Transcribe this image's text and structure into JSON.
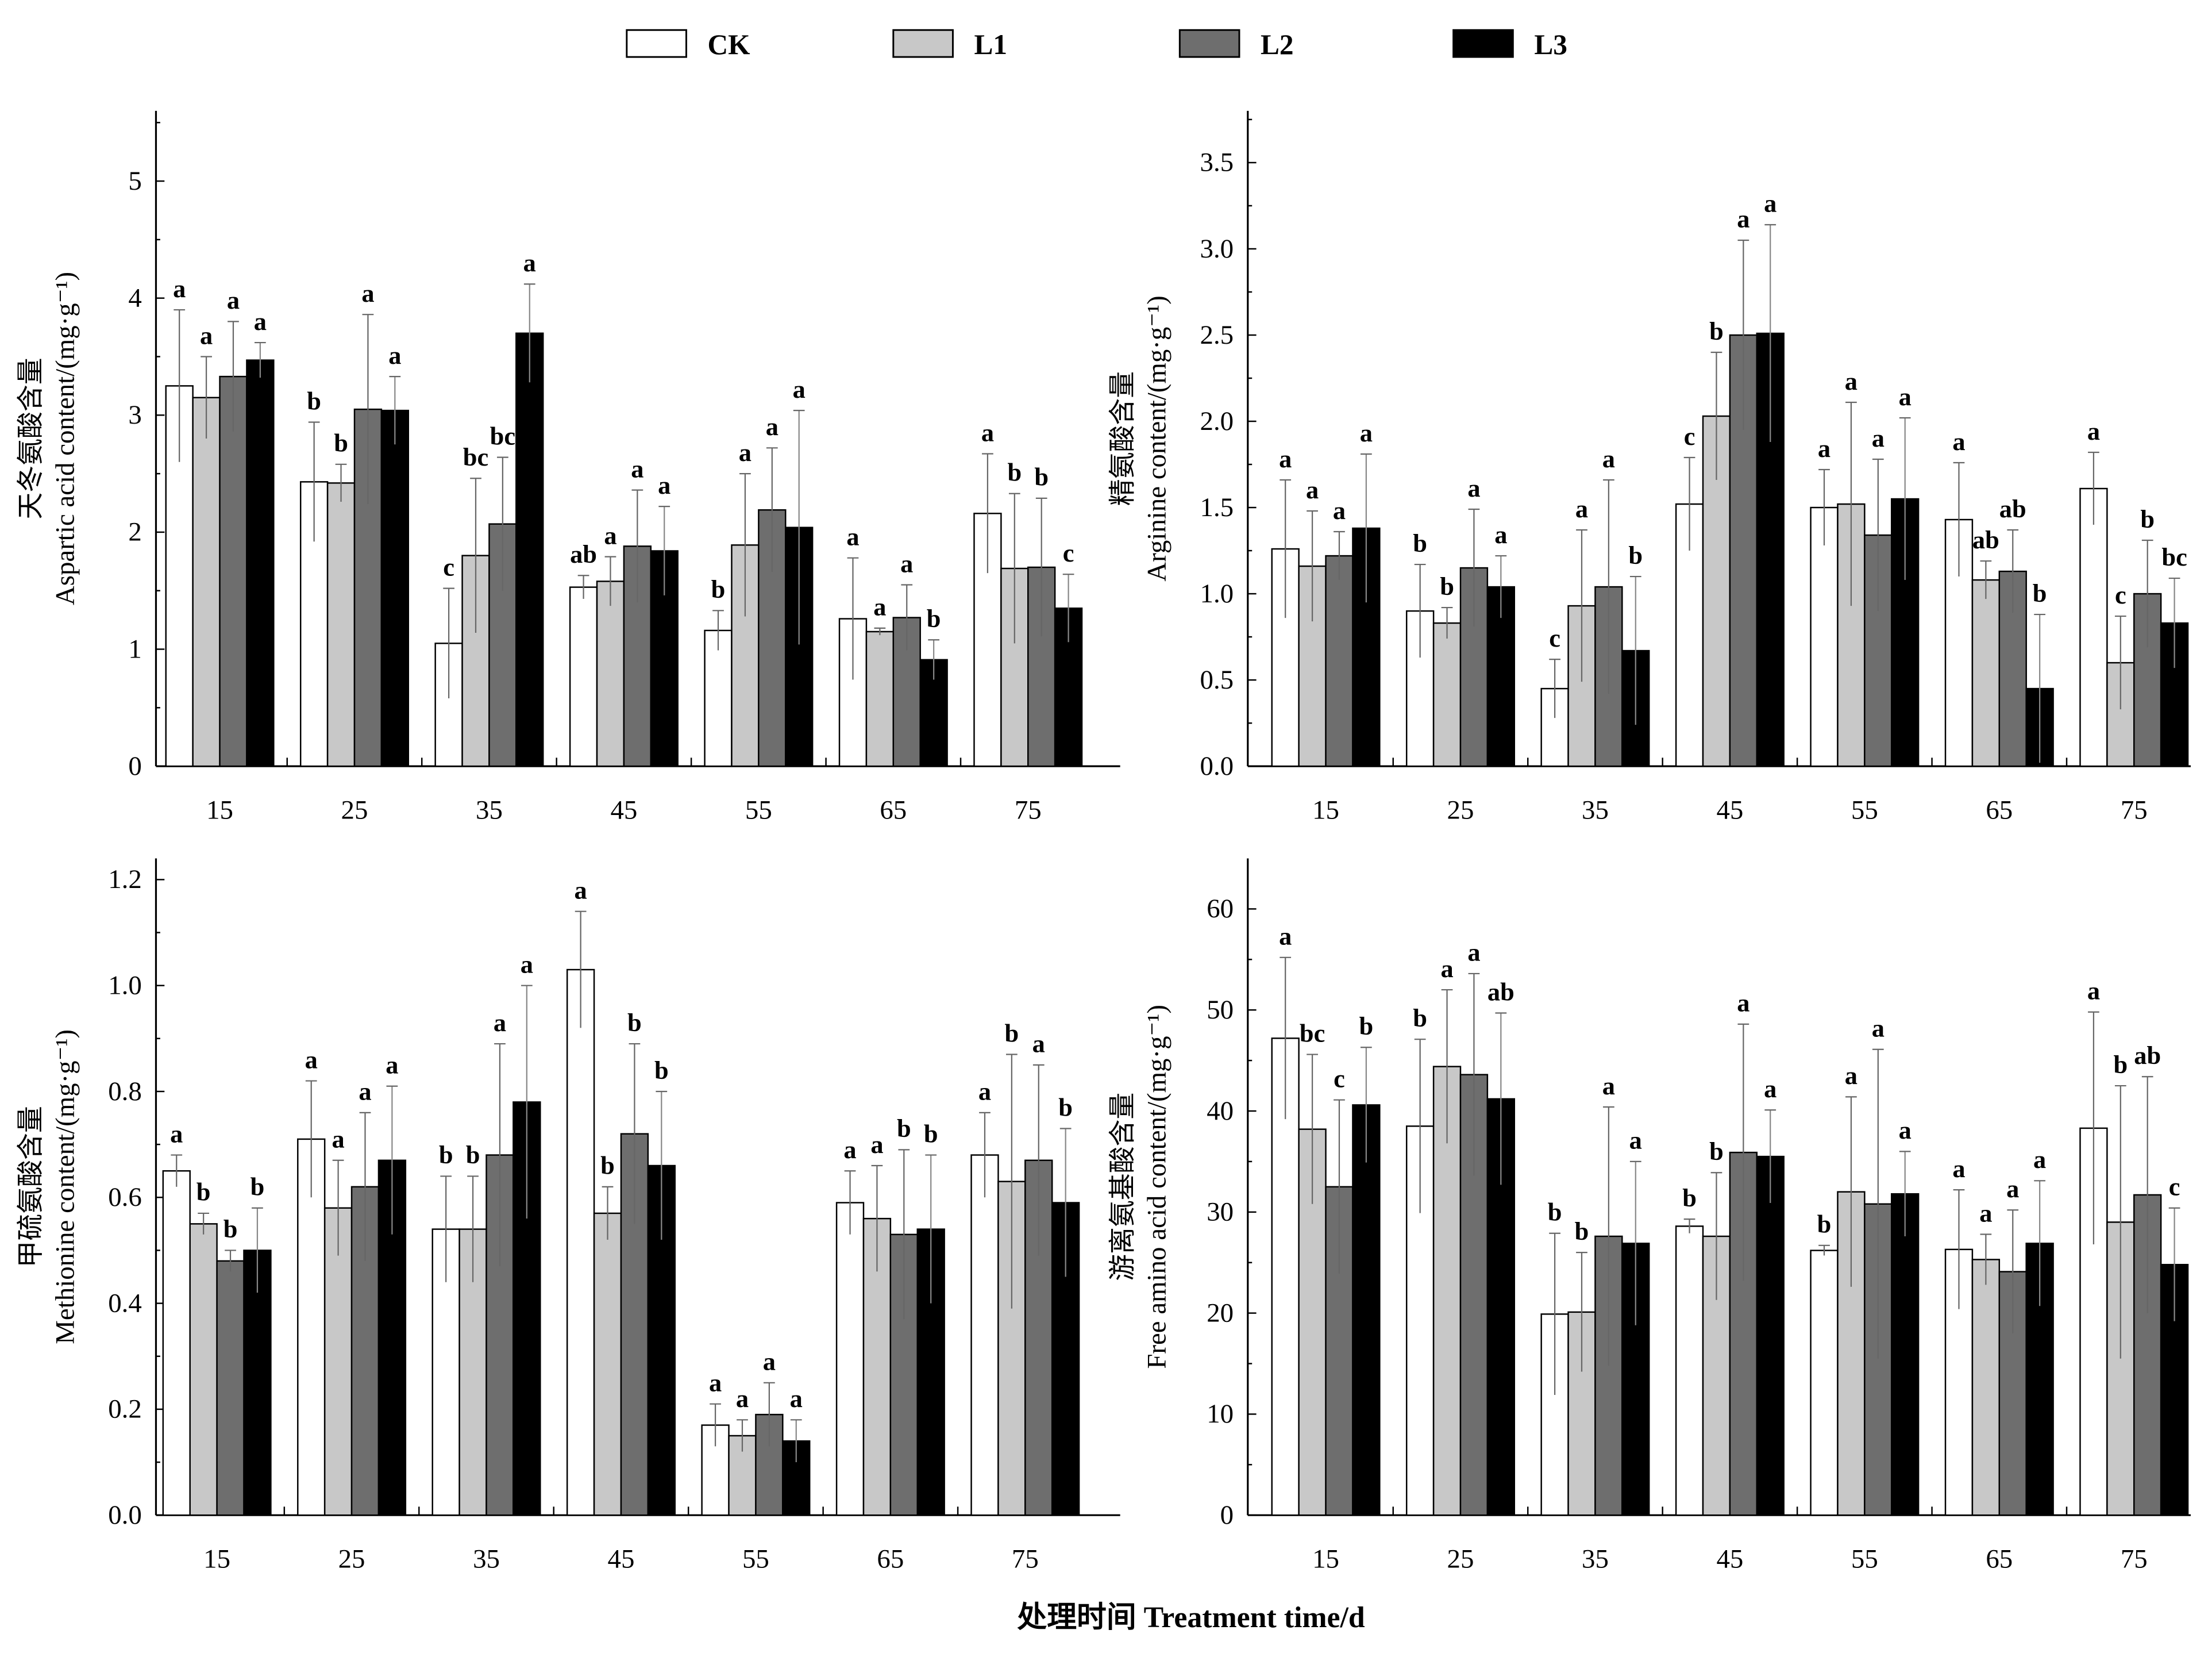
{
  "legend": {
    "items": [
      "CK",
      "L1",
      "L2",
      "L3"
    ],
    "colors": [
      "#ffffff",
      "#c8c8c8",
      "#6e6e6e",
      "#000000"
    ],
    "placement": "top-center"
  },
  "xlabel": "处理时间 Treatment time/d",
  "chart_data": [
    {
      "type": "bar",
      "ylabel_cn": "天冬氨酸含量",
      "ylabel_en": "Aspartic acid content/(mg·g⁻¹)",
      "ylim": [
        0,
        5.6
      ],
      "yticks": [
        "0",
        "1",
        "2",
        "3",
        "4",
        "5"
      ],
      "ytick_values": [
        0,
        1,
        2,
        3,
        4,
        5
      ],
      "categories": [
        "15",
        "25",
        "35",
        "45",
        "55",
        "65",
        "75"
      ],
      "series": [
        {
          "name": "CK",
          "values": [
            3.25,
            2.43,
            1.05,
            1.53,
            1.16,
            1.26,
            2.16
          ],
          "error": [
            0.65,
            0.51,
            0.47,
            0.1,
            0.17,
            0.52,
            0.51
          ],
          "letters": [
            "a",
            "b",
            "c",
            "ab",
            "b",
            "a",
            "a"
          ]
        },
        {
          "name": "L1",
          "values": [
            3.15,
            2.42,
            1.8,
            1.58,
            1.89,
            1.15,
            1.69
          ],
          "error": [
            0.35,
            0.16,
            0.66,
            0.21,
            0.61,
            0.03,
            0.64
          ],
          "letters": [
            "a",
            "b",
            "bc",
            "a",
            "a",
            "a",
            "b"
          ]
        },
        {
          "name": "L2",
          "values": [
            3.33,
            3.05,
            2.07,
            1.88,
            2.19,
            1.27,
            1.7
          ],
          "error": [
            0.47,
            0.81,
            0.57,
            0.48,
            0.53,
            0.28,
            0.59
          ],
          "letters": [
            "a",
            "a",
            "bc",
            "a",
            "a",
            "a",
            "b"
          ]
        },
        {
          "name": "L3",
          "values": [
            3.47,
            3.04,
            3.7,
            1.84,
            2.04,
            0.91,
            1.35
          ],
          "error": [
            0.15,
            0.29,
            0.42,
            0.38,
            1.0,
            0.17,
            0.29
          ],
          "letters": [
            "a",
            "a",
            "a",
            "a",
            "a",
            "b",
            "c"
          ]
        }
      ]
    },
    {
      "type": "bar",
      "ylabel_cn": "精氨酸含量",
      "ylabel_en": "Arginine content/(mg·g⁻¹)",
      "ylim": [
        0,
        3.8
      ],
      "yticks": [
        "0.0",
        "0.5",
        "1.0",
        "1.5",
        "2.0",
        "2.5",
        "3.0",
        "3.5"
      ],
      "ytick_values": [
        0,
        0.5,
        1,
        1.5,
        2,
        2.5,
        3,
        3.5
      ],
      "categories": [
        "15",
        "25",
        "35",
        "45",
        "55",
        "65",
        "75"
      ],
      "series": [
        {
          "name": "CK",
          "values": [
            1.26,
            0.9,
            0.45,
            1.52,
            1.5,
            1.43,
            1.61
          ],
          "error": [
            0.4,
            0.27,
            0.17,
            0.27,
            0.22,
            0.33,
            0.21
          ],
          "letters": [
            "a",
            "b",
            "c",
            "c",
            "a",
            "a",
            "a"
          ]
        },
        {
          "name": "L1",
          "values": [
            1.16,
            0.83,
            0.93,
            2.03,
            1.52,
            1.08,
            0.6
          ],
          "error": [
            0.32,
            0.09,
            0.44,
            0.37,
            0.59,
            0.11,
            0.27
          ],
          "letters": [
            "a",
            "b",
            "a",
            "b",
            "a",
            "ab",
            "c"
          ]
        },
        {
          "name": "L2",
          "values": [
            1.22,
            1.15,
            1.04,
            2.5,
            1.34,
            1.13,
            1.0
          ],
          "error": [
            0.14,
            0.34,
            0.62,
            0.55,
            0.44,
            0.24,
            0.31
          ],
          "letters": [
            "a",
            "a",
            "a",
            "a",
            "a",
            "ab",
            "b"
          ]
        },
        {
          "name": "L3",
          "values": [
            1.38,
            1.04,
            0.67,
            2.51,
            1.55,
            0.45,
            0.83
          ],
          "error": [
            0.43,
            0.18,
            0.43,
            0.63,
            0.47,
            0.43,
            0.26
          ],
          "letters": [
            "a",
            "a",
            "b",
            "a",
            "a",
            "b",
            "bc"
          ]
        }
      ]
    },
    {
      "type": "bar",
      "ylabel_cn": "甲硫氨酸含量",
      "ylabel_en": "Methionine content/(mg·g⁻¹)",
      "ylim": [
        0,
        1.24
      ],
      "yticks": [
        "0.0",
        "0.2",
        "0.4",
        "0.6",
        "0.8",
        "1.0",
        "1.2"
      ],
      "ytick_values": [
        0,
        0.2,
        0.4,
        0.6,
        0.8,
        1.0,
        1.2
      ],
      "categories": [
        "15",
        "25",
        "35",
        "45",
        "55",
        "65",
        "75"
      ],
      "series": [
        {
          "name": "CK",
          "values": [
            0.65,
            0.71,
            0.54,
            1.03,
            0.17,
            0.59,
            0.68
          ],
          "error": [
            0.03,
            0.11,
            0.1,
            0.11,
            0.04,
            0.06,
            0.08
          ],
          "letters": [
            "a",
            "a",
            "b",
            "a",
            "a",
            "a",
            "a"
          ]
        },
        {
          "name": "L1",
          "values": [
            0.55,
            0.58,
            0.54,
            0.57,
            0.15,
            0.56,
            0.63
          ],
          "error": [
            0.02,
            0.09,
            0.1,
            0.05,
            0.03,
            0.1,
            0.24
          ],
          "letters": [
            "b",
            "a",
            "b",
            "b",
            "a",
            "a",
            "b"
          ]
        },
        {
          "name": "L2",
          "values": [
            0.48,
            0.62,
            0.68,
            0.72,
            0.19,
            0.53,
            0.67
          ],
          "error": [
            0.02,
            0.14,
            0.21,
            0.17,
            0.06,
            0.16,
            0.18
          ],
          "letters": [
            "b",
            "a",
            "a",
            "b",
            "a",
            "b",
            "a"
          ]
        },
        {
          "name": "L3",
          "values": [
            0.5,
            0.67,
            0.78,
            0.66,
            0.14,
            0.54,
            0.59
          ],
          "error": [
            0.08,
            0.14,
            0.22,
            0.14,
            0.04,
            0.14,
            0.14
          ],
          "letters": [
            "b",
            "a",
            "a",
            "b",
            "a",
            "b",
            "b"
          ]
        }
      ]
    },
    {
      "type": "bar",
      "ylabel_cn": "游离氨基酸含量",
      "ylabel_en": "Free amino acid content/(mg·g⁻¹)",
      "ylim": [
        0,
        65
      ],
      "yticks": [
        "0",
        "10",
        "20",
        "30",
        "40",
        "50",
        "60"
      ],
      "ytick_values": [
        0,
        10,
        20,
        30,
        40,
        50,
        60
      ],
      "categories": [
        "15",
        "25",
        "35",
        "45",
        "55",
        "65",
        "75"
      ],
      "series": [
        {
          "name": "CK",
          "values": [
            47.2,
            38.5,
            19.9,
            28.6,
            26.2,
            26.3,
            38.3
          ],
          "error": [
            8.0,
            8.6,
            8.0,
            0.7,
            0.5,
            5.9,
            11.5
          ],
          "letters": [
            "a",
            "b",
            "b",
            "b",
            "b",
            "a",
            "a"
          ]
        },
        {
          "name": "L1",
          "values": [
            38.2,
            44.4,
            20.1,
            27.6,
            32.0,
            25.3,
            29.0
          ],
          "error": [
            7.4,
            7.6,
            5.9,
            6.3,
            9.4,
            2.5,
            13.5
          ],
          "letters": [
            "bc",
            "a",
            "b",
            "b",
            "a",
            "a",
            "b"
          ]
        },
        {
          "name": "L2",
          "values": [
            32.5,
            43.6,
            27.6,
            35.9,
            30.8,
            24.1,
            31.7
          ],
          "error": [
            8.6,
            10.0,
            12.8,
            12.7,
            15.3,
            6.1,
            11.7
          ],
          "letters": [
            "c",
            "a",
            "a",
            "a",
            "a",
            "a",
            "ab"
          ]
        },
        {
          "name": "L3",
          "values": [
            40.6,
            41.2,
            26.9,
            35.5,
            31.8,
            26.9,
            24.8
          ],
          "error": [
            5.7,
            8.5,
            8.1,
            4.6,
            4.2,
            6.2,
            5.6
          ],
          "letters": [
            "b",
            "ab",
            "a",
            "a",
            "a",
            "a",
            "c"
          ]
        }
      ]
    }
  ]
}
